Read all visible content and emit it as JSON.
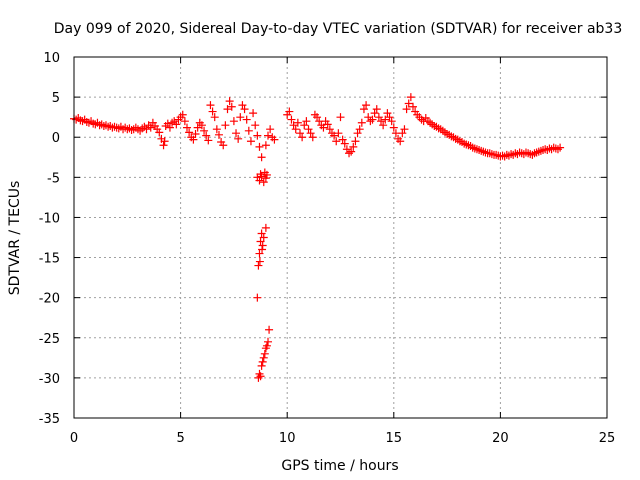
{
  "chart_data": {
    "type": "scatter",
    "title": "Day 099 of 2020, Sidereal Day-to-day VTEC variation (SDTVAR) for receiver ab33",
    "xlabel": "GPS time / hours",
    "ylabel": "SDTVAR / TECUs",
    "xlim": [
      0,
      25
    ],
    "ylim": [
      -35,
      10
    ],
    "xticks": [
      0,
      5,
      10,
      15,
      20,
      25
    ],
    "yticks": [
      10,
      5,
      0,
      -5,
      -10,
      -15,
      -20,
      -25,
      -30,
      -35
    ],
    "grid": true,
    "marker": "plus",
    "color": "#ff0000",
    "series": [
      {
        "name": "SDTVAR",
        "points": [
          [
            0.0,
            2.3
          ],
          [
            0.1,
            2.2
          ],
          [
            0.2,
            2.4
          ],
          [
            0.3,
            2.1
          ],
          [
            0.4,
            2.0
          ],
          [
            0.5,
            2.2
          ],
          [
            0.6,
            1.9
          ],
          [
            0.7,
            1.8
          ],
          [
            0.8,
            2.0
          ],
          [
            0.9,
            1.7
          ],
          [
            1.0,
            1.6
          ],
          [
            1.1,
            1.8
          ],
          [
            1.2,
            1.5
          ],
          [
            1.3,
            1.6
          ],
          [
            1.4,
            1.4
          ],
          [
            1.5,
            1.5
          ],
          [
            1.6,
            1.3
          ],
          [
            1.7,
            1.4
          ],
          [
            1.8,
            1.2
          ],
          [
            1.9,
            1.3
          ],
          [
            2.0,
            1.2
          ],
          [
            2.1,
            1.1
          ],
          [
            2.2,
            1.3
          ],
          [
            2.3,
            1.0
          ],
          [
            2.4,
            1.2
          ],
          [
            2.5,
            1.0
          ],
          [
            2.6,
            1.1
          ],
          [
            2.7,
            0.9
          ],
          [
            2.8,
            1.0
          ],
          [
            2.9,
            1.2
          ],
          [
            3.0,
            1.0
          ],
          [
            3.1,
            0.8
          ],
          [
            3.2,
            1.1
          ],
          [
            3.3,
            1.3
          ],
          [
            3.4,
            1.0
          ],
          [
            3.5,
            1.5
          ],
          [
            3.6,
            1.2
          ],
          [
            3.7,
            1.8
          ],
          [
            3.8,
            1.4
          ],
          [
            3.9,
            1.0
          ],
          [
            4.0,
            0.6
          ],
          [
            4.1,
            -0.2
          ],
          [
            4.2,
            -1.0
          ],
          [
            4.25,
            -0.5
          ],
          [
            4.3,
            1.4
          ],
          [
            4.4,
            1.7
          ],
          [
            4.5,
            1.2
          ],
          [
            4.6,
            1.8
          ],
          [
            4.7,
            2.0
          ],
          [
            4.8,
            1.6
          ],
          [
            4.9,
            2.2
          ],
          [
            5.0,
            2.5
          ],
          [
            5.1,
            2.8
          ],
          [
            5.2,
            2.0
          ],
          [
            5.3,
            1.2
          ],
          [
            5.4,
            0.6
          ],
          [
            5.5,
            0.0
          ],
          [
            5.6,
            -0.3
          ],
          [
            5.7,
            0.4
          ],
          [
            5.8,
            1.2
          ],
          [
            5.9,
            1.8
          ],
          [
            6.0,
            1.5
          ],
          [
            6.1,
            0.8
          ],
          [
            6.2,
            0.2
          ],
          [
            6.3,
            -0.4
          ],
          [
            6.4,
            4.0
          ],
          [
            6.5,
            3.2
          ],
          [
            6.6,
            2.5
          ],
          [
            6.7,
            1.0
          ],
          [
            6.8,
            0.3
          ],
          [
            6.9,
            -0.6
          ],
          [
            7.0,
            -1.0
          ],
          [
            7.1,
            1.5
          ],
          [
            7.2,
            3.5
          ],
          [
            7.3,
            4.5
          ],
          [
            7.4,
            3.8
          ],
          [
            7.5,
            2.0
          ],
          [
            7.6,
            0.5
          ],
          [
            7.7,
            -0.2
          ],
          [
            7.8,
            2.5
          ],
          [
            7.9,
            4.0
          ],
          [
            8.0,
            3.5
          ],
          [
            8.1,
            2.2
          ],
          [
            8.2,
            0.8
          ],
          [
            8.3,
            -0.5
          ],
          [
            8.4,
            3.0
          ],
          [
            8.5,
            1.5
          ],
          [
            8.6,
            0.2
          ],
          [
            8.7,
            -1.2
          ],
          [
            8.8,
            -2.5
          ],
          [
            8.6,
            -5.0
          ],
          [
            8.7,
            -5.4
          ],
          [
            8.8,
            -4.9
          ],
          [
            8.9,
            -5.6
          ],
          [
            9.0,
            -5.1
          ],
          [
            8.95,
            -4.4
          ],
          [
            8.75,
            -4.6
          ],
          [
            9.05,
            -4.7
          ],
          [
            8.65,
            -16.0
          ],
          [
            8.7,
            -14.5
          ],
          [
            8.75,
            -13.0
          ],
          [
            8.8,
            -12.0
          ],
          [
            8.85,
            -13.5
          ],
          [
            8.9,
            -12.5
          ],
          [
            9.0,
            -11.3
          ],
          [
            8.72,
            -15.5
          ],
          [
            8.82,
            -14.0
          ],
          [
            8.6,
            -20.0
          ],
          [
            8.65,
            -30.0
          ],
          [
            8.7,
            -29.5
          ],
          [
            8.75,
            -29.8
          ],
          [
            8.8,
            -28.5
          ],
          [
            8.85,
            -28.0
          ],
          [
            8.9,
            -27.5
          ],
          [
            8.95,
            -27.0
          ],
          [
            9.0,
            -26.3
          ],
          [
            9.05,
            -26.0
          ],
          [
            9.1,
            -25.5
          ],
          [
            9.15,
            -24.0
          ],
          [
            9.0,
            -1.0
          ],
          [
            9.1,
            0.2
          ],
          [
            9.2,
            1.0
          ],
          [
            9.3,
            0.0
          ],
          [
            9.4,
            -0.3
          ],
          [
            10.0,
            2.8
          ],
          [
            10.1,
            3.2
          ],
          [
            10.2,
            2.2
          ],
          [
            10.3,
            1.5
          ],
          [
            10.4,
            1.0
          ],
          [
            10.5,
            1.8
          ],
          [
            10.6,
            0.5
          ],
          [
            10.7,
            0.0
          ],
          [
            10.8,
            1.5
          ],
          [
            10.9,
            2.0
          ],
          [
            11.0,
            1.0
          ],
          [
            11.1,
            0.5
          ],
          [
            11.2,
            0.0
          ],
          [
            11.3,
            2.8
          ],
          [
            11.4,
            2.5
          ],
          [
            11.5,
            2.0
          ],
          [
            11.6,
            1.5
          ],
          [
            11.7,
            1.2
          ],
          [
            11.8,
            2.0
          ],
          [
            11.9,
            1.6
          ],
          [
            12.0,
            1.0
          ],
          [
            12.1,
            0.5
          ],
          [
            12.2,
            0.2
          ],
          [
            12.3,
            -0.5
          ],
          [
            12.4,
            0.5
          ],
          [
            12.5,
            2.5
          ],
          [
            12.6,
            -0.3
          ],
          [
            12.7,
            -0.8
          ],
          [
            12.8,
            -1.5
          ],
          [
            12.9,
            -2.0
          ],
          [
            13.0,
            -1.8
          ],
          [
            13.1,
            -1.2
          ],
          [
            13.2,
            -0.5
          ],
          [
            13.3,
            0.5
          ],
          [
            13.4,
            1.0
          ],
          [
            13.5,
            1.8
          ],
          [
            13.6,
            3.5
          ],
          [
            13.7,
            4.0
          ],
          [
            13.8,
            2.5
          ],
          [
            13.9,
            2.0
          ],
          [
            14.0,
            2.2
          ],
          [
            14.1,
            3.0
          ],
          [
            14.2,
            3.5
          ],
          [
            14.3,
            2.5
          ],
          [
            14.4,
            2.0
          ],
          [
            14.5,
            1.5
          ],
          [
            14.6,
            2.2
          ],
          [
            14.7,
            3.0
          ],
          [
            14.8,
            2.5
          ],
          [
            14.9,
            2.0
          ],
          [
            15.0,
            1.2
          ],
          [
            15.1,
            0.5
          ],
          [
            15.2,
            -0.2
          ],
          [
            15.3,
            -0.5
          ],
          [
            15.4,
            0.5
          ],
          [
            15.5,
            1.0
          ],
          [
            15.6,
            3.5
          ],
          [
            15.7,
            4.2
          ],
          [
            15.8,
            5.0
          ],
          [
            15.9,
            3.8
          ],
          [
            16.0,
            3.2
          ],
          [
            16.1,
            2.8
          ],
          [
            16.2,
            2.5
          ],
          [
            16.3,
            2.2
          ],
          [
            16.4,
            2.0
          ],
          [
            16.5,
            2.4
          ],
          [
            16.6,
            2.0
          ],
          [
            16.7,
            1.8
          ],
          [
            16.8,
            1.6
          ],
          [
            16.9,
            1.4
          ],
          [
            17.0,
            1.3
          ],
          [
            17.1,
            1.1
          ],
          [
            17.2,
            1.0
          ],
          [
            17.3,
            0.8
          ],
          [
            17.4,
            0.6
          ],
          [
            17.5,
            0.4
          ],
          [
            17.6,
            0.3
          ],
          [
            17.7,
            0.1
          ],
          [
            17.8,
            0.0
          ],
          [
            17.9,
            -0.2
          ],
          [
            18.0,
            -0.3
          ],
          [
            18.1,
            -0.5
          ],
          [
            18.2,
            -0.6
          ],
          [
            18.3,
            -0.8
          ],
          [
            18.4,
            -0.9
          ],
          [
            18.5,
            -1.0
          ],
          [
            18.6,
            -1.1
          ],
          [
            18.7,
            -1.3
          ],
          [
            18.8,
            -1.4
          ],
          [
            18.9,
            -1.5
          ],
          [
            19.0,
            -1.6
          ],
          [
            19.1,
            -1.7
          ],
          [
            19.2,
            -1.8
          ],
          [
            19.3,
            -1.9
          ],
          [
            19.4,
            -2.0
          ],
          [
            19.5,
            -2.0
          ],
          [
            19.6,
            -2.1
          ],
          [
            19.7,
            -2.2
          ],
          [
            19.8,
            -2.2
          ],
          [
            19.9,
            -2.3
          ],
          [
            20.0,
            -2.4
          ],
          [
            20.1,
            -2.3
          ],
          [
            20.2,
            -2.4
          ],
          [
            20.3,
            -2.2
          ],
          [
            20.4,
            -2.3
          ],
          [
            20.5,
            -2.1
          ],
          [
            20.6,
            -2.2
          ],
          [
            20.7,
            -2.0
          ],
          [
            20.8,
            -2.1
          ],
          [
            20.9,
            -1.9
          ],
          [
            21.0,
            -2.0
          ],
          [
            21.1,
            -2.1
          ],
          [
            21.2,
            -1.9
          ],
          [
            21.3,
            -2.0
          ],
          [
            21.4,
            -2.1
          ],
          [
            21.5,
            -2.2
          ],
          [
            21.6,
            -2.0
          ],
          [
            21.7,
            -1.9
          ],
          [
            21.8,
            -1.8
          ],
          [
            21.9,
            -1.7
          ],
          [
            22.0,
            -1.6
          ],
          [
            22.1,
            -1.5
          ],
          [
            22.2,
            -1.6
          ],
          [
            22.3,
            -1.4
          ],
          [
            22.4,
            -1.5
          ],
          [
            22.5,
            -1.3
          ],
          [
            22.6,
            -1.4
          ],
          [
            22.7,
            -1.5
          ],
          [
            22.8,
            -1.3
          ]
        ]
      }
    ]
  }
}
